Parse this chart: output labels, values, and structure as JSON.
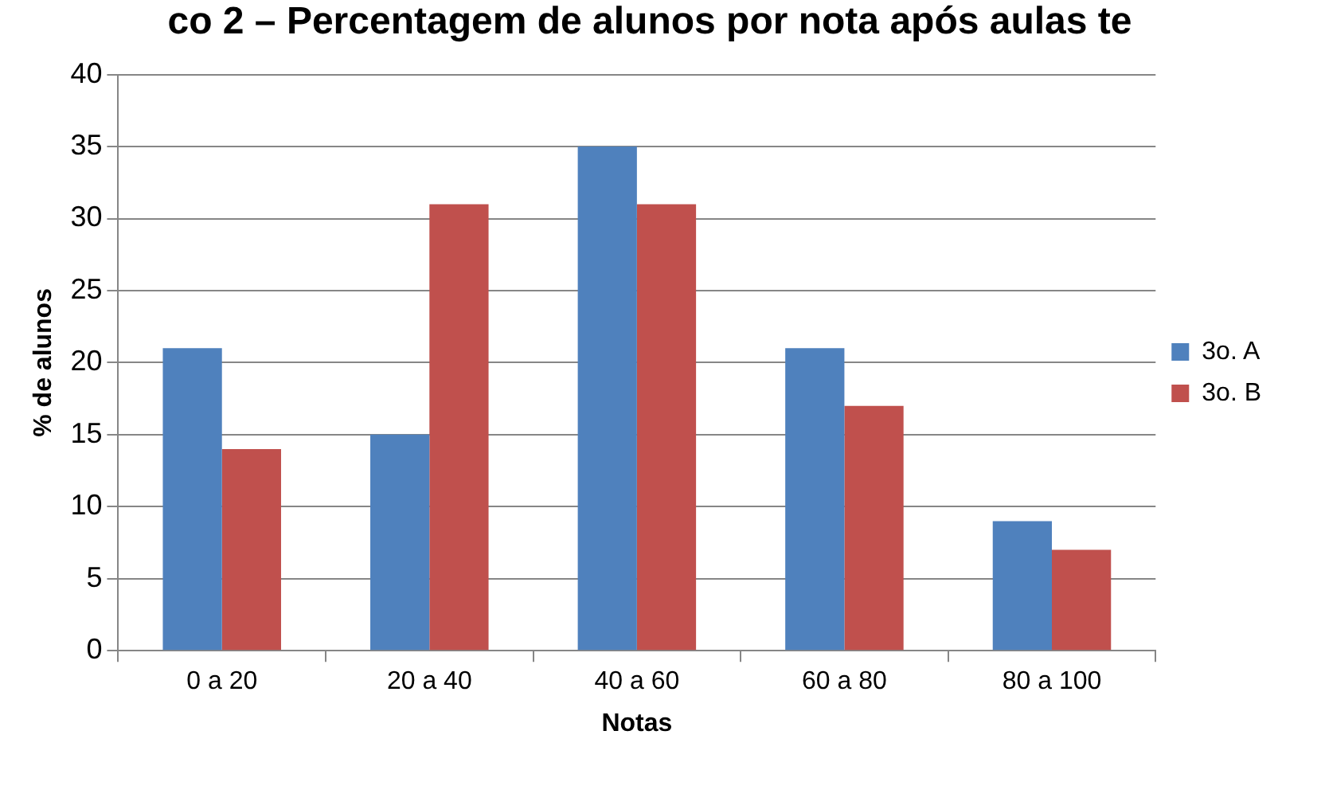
{
  "chart_data": {
    "type": "bar",
    "title": "co 2 – Percentagem de alunos por nota após aulas te",
    "xlabel": "Notas",
    "ylabel": "% de alunos",
    "categories": [
      "0 a 20",
      "20 a 40",
      "40 a 60",
      "60 a 80",
      "80 a 100"
    ],
    "series": [
      {
        "name": "3o. A",
        "color": "#4f81bd",
        "values": [
          21,
          15,
          35,
          21,
          9
        ]
      },
      {
        "name": "3o. B",
        "color": "#c0504d",
        "values": [
          14,
          31,
          31,
          17,
          7
        ]
      }
    ],
    "ylim": [
      0,
      40
    ],
    "yticks": [
      0,
      5,
      10,
      15,
      20,
      25,
      30,
      35,
      40
    ],
    "grid": "y",
    "legend": "right"
  }
}
